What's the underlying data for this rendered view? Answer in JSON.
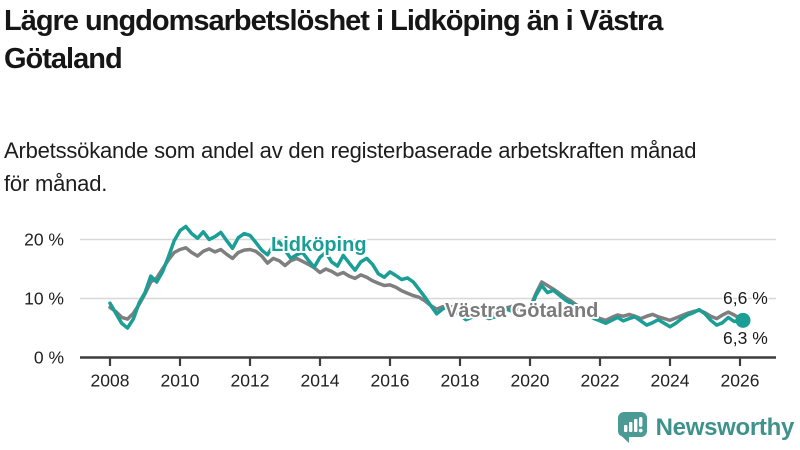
{
  "title": {
    "line1": "Lägre ungdomsarbetslöshet i Lidköping än i Västra",
    "line2": "Götaland"
  },
  "subtitle": {
    "line1": "Arbetssökande som andel av den registerbaserade arbetskraften månad",
    "line2": "för månad."
  },
  "colors": {
    "lidkoping": "#1a9e96",
    "vastra_gotaland": "#7f7f7f",
    "gridline": "#d8d8d8",
    "axis": "#3d3d3d",
    "brand_teal": "#3f928c",
    "logo_teal": "#4b9a93",
    "text": "#161616"
  },
  "footer": {
    "brand": "Newsworthy",
    "logo_icon": "bar-chart-speech-bubble"
  },
  "chart_data": {
    "type": "line",
    "title": "",
    "xlabel": "",
    "ylabel": "",
    "grid": "horizontal",
    "legend_position": "inline-labels",
    "x_start_year": 2008,
    "x_step_years": 0.1666667,
    "xlim": [
      2007.2,
      2027.0
    ],
    "ylim": [
      0,
      25
    ],
    "x_ticks": [
      "2008",
      "2010",
      "2012",
      "2014",
      "2016",
      "2018",
      "2020",
      "2022",
      "2024",
      "2026"
    ],
    "y_ticks": [
      {
        "value": 0,
        "label": "0 %"
      },
      {
        "value": 10,
        "label": "10 %"
      },
      {
        "value": 20,
        "label": "20 %"
      }
    ],
    "series": [
      {
        "name": "Västra Götaland",
        "label": "Västra Götaland",
        "end_label": "6,6 %",
        "end_value": 6.6,
        "color": "#7f7f7f",
        "end_dot": false,
        "values": [
          8.5,
          7.8,
          6.8,
          6.5,
          7.5,
          9.0,
          10.8,
          12.8,
          13.5,
          15.0,
          16.5,
          17.8,
          18.3,
          18.6,
          17.8,
          17.2,
          18.0,
          18.4,
          17.9,
          18.3,
          17.5,
          16.8,
          17.8,
          18.2,
          18.3,
          18.0,
          17.2,
          16.0,
          16.8,
          16.4,
          15.6,
          16.4,
          16.8,
          16.3,
          15.8,
          15.2,
          14.4,
          15.0,
          14.6,
          14.0,
          14.4,
          13.8,
          13.4,
          14.0,
          13.6,
          13.0,
          12.6,
          12.2,
          12.3,
          11.9,
          11.3,
          10.9,
          10.5,
          10.2,
          9.6,
          8.8,
          8.2,
          8.6,
          8.8,
          8.4,
          7.8,
          7.4,
          7.6,
          7.9,
          7.6,
          7.2,
          7.4,
          7.8,
          8.4,
          8.7,
          8.2,
          7.9,
          8.4,
          10.8,
          12.8,
          12.2,
          11.6,
          10.9,
          10.2,
          9.6,
          8.9,
          8.2,
          7.6,
          7.0,
          6.6,
          6.3,
          6.8,
          7.2,
          7.0,
          7.3,
          7.0,
          6.6,
          7.0,
          7.3,
          6.9,
          6.6,
          6.3,
          6.7,
          7.1,
          7.5,
          7.8,
          8.0,
          7.6,
          7.0,
          6.6,
          7.2,
          7.7,
          7.2,
          6.6
        ]
      },
      {
        "name": "Lidköping",
        "label": "Lidköping",
        "end_label": "6,3 %",
        "end_value": 6.3,
        "color": "#1a9e96",
        "end_dot": true,
        "values": [
          9.2,
          7.5,
          5.8,
          5.0,
          6.5,
          9.3,
          11.0,
          13.8,
          12.8,
          14.5,
          17.0,
          19.8,
          21.5,
          22.2,
          21.0,
          20.2,
          21.3,
          20.0,
          20.5,
          21.2,
          19.8,
          18.5,
          20.3,
          21.0,
          20.7,
          19.5,
          18.2,
          17.4,
          19.0,
          19.6,
          18.2,
          16.8,
          17.4,
          17.8,
          16.5,
          15.3,
          17.0,
          17.8,
          16.2,
          15.5,
          17.3,
          16.0,
          14.8,
          16.2,
          16.8,
          15.8,
          14.2,
          13.6,
          14.5,
          13.9,
          13.2,
          13.5,
          12.8,
          11.5,
          10.2,
          8.8,
          7.4,
          8.2,
          8.8,
          8.0,
          7.2,
          6.4,
          6.8,
          7.4,
          7.0,
          6.6,
          6.9,
          7.6,
          8.2,
          7.8,
          7.2,
          7.5,
          8.0,
          10.5,
          12.2,
          11.0,
          11.4,
          10.6,
          9.8,
          9.2,
          8.6,
          8.0,
          7.2,
          6.6,
          6.2,
          5.8,
          6.3,
          6.8,
          6.2,
          6.6,
          6.9,
          6.2,
          5.5,
          5.9,
          6.4,
          5.8,
          5.2,
          5.8,
          6.6,
          7.2,
          7.6,
          8.1,
          7.4,
          6.3,
          5.5,
          5.9,
          6.8,
          6.1,
          6.3
        ]
      }
    ]
  }
}
